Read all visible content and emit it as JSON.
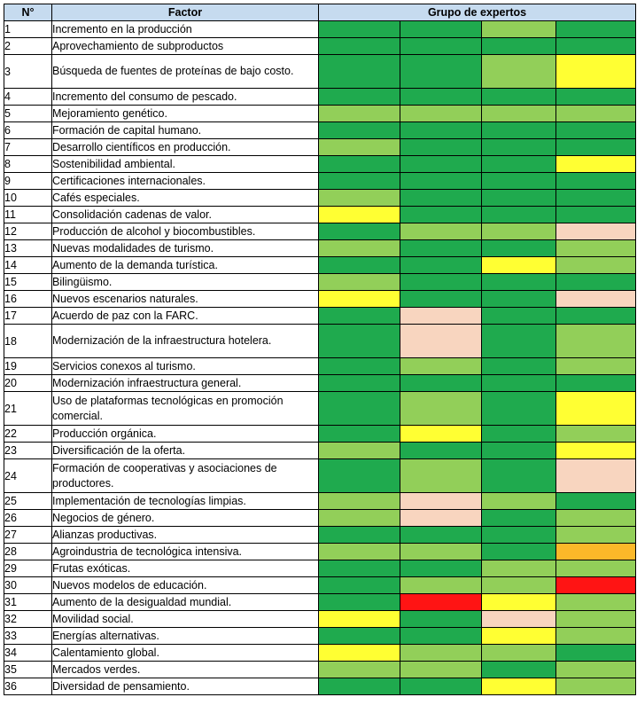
{
  "header": {
    "num": "N°",
    "factor": "Factor",
    "experts": "Grupo de expertos"
  },
  "colors": {
    "dg": "#1faa4e",
    "lg": "#92cf59",
    "y": "#ffff33",
    "p": "#f8d5bf",
    "o": "#fbb829",
    "r": "#ff1414"
  },
  "rows": [
    {
      "n": "1",
      "f": "Incremento en la producción",
      "c": [
        "dg",
        "dg",
        "lg",
        "dg"
      ]
    },
    {
      "n": "2",
      "f": "Aprovechamiento de subproductos",
      "c": [
        "dg",
        "dg",
        "dg",
        "dg"
      ]
    },
    {
      "n": "3",
      "f": "Búsqueda de fuentes de proteínas de bajo costo.",
      "c": [
        "dg",
        "dg",
        "lg",
        "y"
      ]
    },
    {
      "n": "4",
      "f": "Incremento del consumo de pescado.",
      "c": [
        "dg",
        "dg",
        "dg",
        "dg"
      ]
    },
    {
      "n": "5",
      "f": "Mejoramiento genético.",
      "c": [
        "lg",
        "lg",
        "lg",
        "lg"
      ]
    },
    {
      "n": "6",
      "f": "Formación de capital humano.",
      "c": [
        "dg",
        "dg",
        "dg",
        "dg"
      ]
    },
    {
      "n": "7",
      "f": "Desarrollo científicos en producción.",
      "c": [
        "lg",
        "dg",
        "dg",
        "dg"
      ]
    },
    {
      "n": "8",
      "f": "Sostenibilidad ambiental.",
      "c": [
        "dg",
        "dg",
        "dg",
        "y"
      ]
    },
    {
      "n": "9",
      "f": "Certificaciones internacionales.",
      "c": [
        "dg",
        "dg",
        "dg",
        "dg"
      ]
    },
    {
      "n": "10",
      "f": "Cafés especiales.",
      "c": [
        "lg",
        "dg",
        "dg",
        "dg"
      ]
    },
    {
      "n": "11",
      "f": "Consolidación cadenas de valor.",
      "c": [
        "y",
        "dg",
        "dg",
        "dg"
      ]
    },
    {
      "n": "12",
      "f": "Producción de alcohol y biocombustibles.",
      "c": [
        "dg",
        "lg",
        "lg",
        "p"
      ]
    },
    {
      "n": "13",
      "f": "Nuevas modalidades de turismo.",
      "c": [
        "lg",
        "dg",
        "dg",
        "lg"
      ]
    },
    {
      "n": "14",
      "f": "Aumento de la demanda turística.",
      "c": [
        "dg",
        "dg",
        "y",
        "lg"
      ]
    },
    {
      "n": "15",
      "f": "Bilingüismo.",
      "c": [
        "lg",
        "dg",
        "dg",
        "dg"
      ]
    },
    {
      "n": "16",
      "f": "Nuevos escenarios naturales.",
      "c": [
        "y",
        "dg",
        "dg",
        "p"
      ]
    },
    {
      "n": "17",
      "f": "Acuerdo de paz con la FARC.",
      "c": [
        "dg",
        "p",
        "dg",
        "dg"
      ]
    },
    {
      "n": "18",
      "f": "Modernización de la infraestructura hotelera.",
      "c": [
        "dg",
        "p",
        "dg",
        "lg"
      ]
    },
    {
      "n": "19",
      "f": "Servicios conexos al turismo.",
      "c": [
        "dg",
        "lg",
        "dg",
        "lg"
      ]
    },
    {
      "n": "20",
      "f": "Modernización infraestructura general.",
      "c": [
        "dg",
        "dg",
        "dg",
        "dg"
      ]
    },
    {
      "n": "21",
      "f": "Uso de plataformas tecnológicas en promoción comercial.",
      "c": [
        "dg",
        "lg",
        "dg",
        "y"
      ]
    },
    {
      "n": "22",
      "f": "Producción orgánica.",
      "c": [
        "dg",
        "y",
        "dg",
        "lg"
      ]
    },
    {
      "n": "23",
      "f": "Diversificación de la oferta.",
      "c": [
        "lg",
        "dg",
        "dg",
        "y"
      ]
    },
    {
      "n": "24",
      "f": "Formación de cooperativas y asociaciones de productores.",
      "c": [
        "dg",
        "lg",
        "dg",
        "p"
      ]
    },
    {
      "n": "25",
      "f": "Implementación de tecnologías limpias.",
      "c": [
        "lg",
        "p",
        "lg",
        "dg"
      ]
    },
    {
      "n": "26",
      "f": "Negocios de género.",
      "c": [
        "lg",
        "p",
        "dg",
        "lg"
      ]
    },
    {
      "n": "27",
      "f": "Alianzas productivas.",
      "c": [
        "dg",
        "dg",
        "dg",
        "lg"
      ]
    },
    {
      "n": "28",
      "f": "Agroindustria de tecnológica intensiva.",
      "c": [
        "lg",
        "lg",
        "dg",
        "o"
      ]
    },
    {
      "n": "29",
      "f": "Frutas exóticas.",
      "c": [
        "dg",
        "dg",
        "lg",
        "lg"
      ]
    },
    {
      "n": "30",
      "f": "Nuevos modelos de educación.",
      "c": [
        "dg",
        "lg",
        "lg",
        "r"
      ]
    },
    {
      "n": "31",
      "f": "Aumento de la desigualdad mundial.",
      "c": [
        "dg",
        "r",
        "y",
        "lg"
      ]
    },
    {
      "n": "32",
      "f": "Movilidad social.",
      "c": [
        "y",
        "dg",
        "p",
        "lg"
      ]
    },
    {
      "n": "33",
      "f": "Energías alternativas.",
      "c": [
        "dg",
        "dg",
        "y",
        "lg"
      ]
    },
    {
      "n": "34",
      "f": "Calentamiento global.",
      "c": [
        "y",
        "lg",
        "lg",
        "dg"
      ]
    },
    {
      "n": "35",
      "f": "Mercados verdes.",
      "c": [
        "lg",
        "lg",
        "dg",
        "lg"
      ]
    },
    {
      "n": "36",
      "f": "Diversidad de pensamiento.",
      "c": [
        "dg",
        "dg",
        "y",
        "lg"
      ]
    }
  ]
}
